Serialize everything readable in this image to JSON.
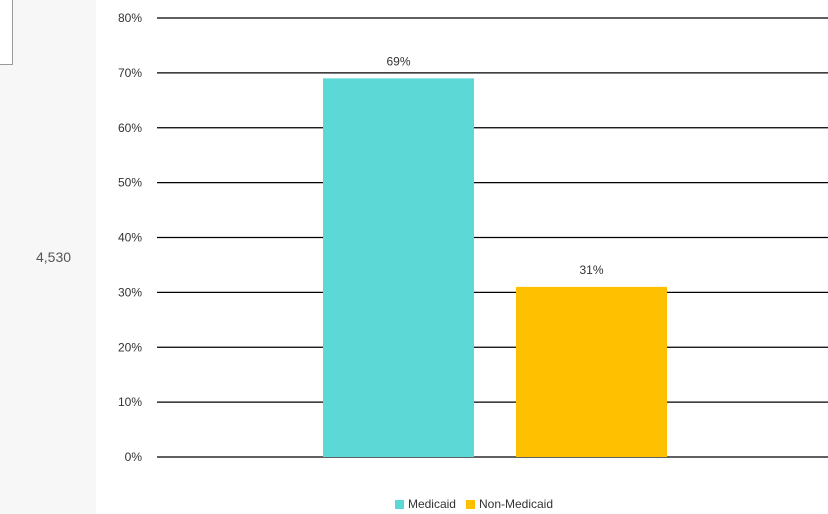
{
  "side_panel": {
    "value": "4,530"
  },
  "chart_data": {
    "type": "bar",
    "categories": [
      "Medicaid",
      "Non-Medicaid"
    ],
    "values": [
      69,
      31
    ],
    "data_labels": [
      "69%",
      "31%"
    ],
    "title": "",
    "xlabel": "",
    "ylabel": "",
    "ylim": [
      0,
      80
    ],
    "yticks": [
      "0%",
      "10%",
      "20%",
      "30%",
      "40%",
      "50%",
      "60%",
      "70%",
      "80%"
    ],
    "grid": true,
    "legend_position": "bottom",
    "series": [
      {
        "name": "Medicaid",
        "values": [
          69,
          null
        ],
        "color": "#5cd9d6"
      },
      {
        "name": "Non-Medicaid",
        "values": [
          null,
          31
        ],
        "color": "#ffc000"
      }
    ]
  }
}
